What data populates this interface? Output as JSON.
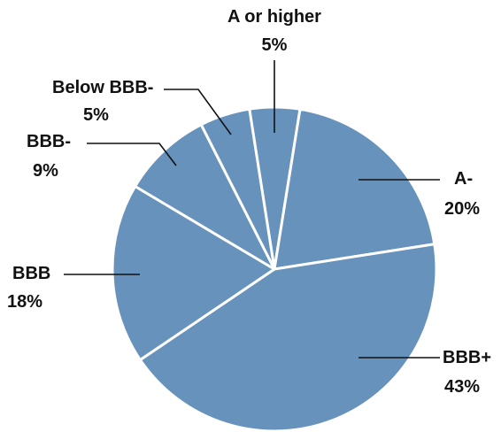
{
  "chart_data": {
    "type": "pie",
    "title": "",
    "slices": [
      {
        "label": "A or higher",
        "value": 5,
        "display": "5%"
      },
      {
        "label": "A-",
        "value": 20,
        "display": "20%"
      },
      {
        "label": "BBB+",
        "value": 43,
        "display": "43%"
      },
      {
        "label": "BBB",
        "value": 18,
        "display": "18%"
      },
      {
        "label": "BBB-",
        "value": 9,
        "display": "9%"
      },
      {
        "label": "Below BBB-",
        "value": 5,
        "display": "5%"
      }
    ],
    "colors": {
      "slice": "#6792BC",
      "slice_border": "#ffffff",
      "text": "#111111"
    }
  }
}
